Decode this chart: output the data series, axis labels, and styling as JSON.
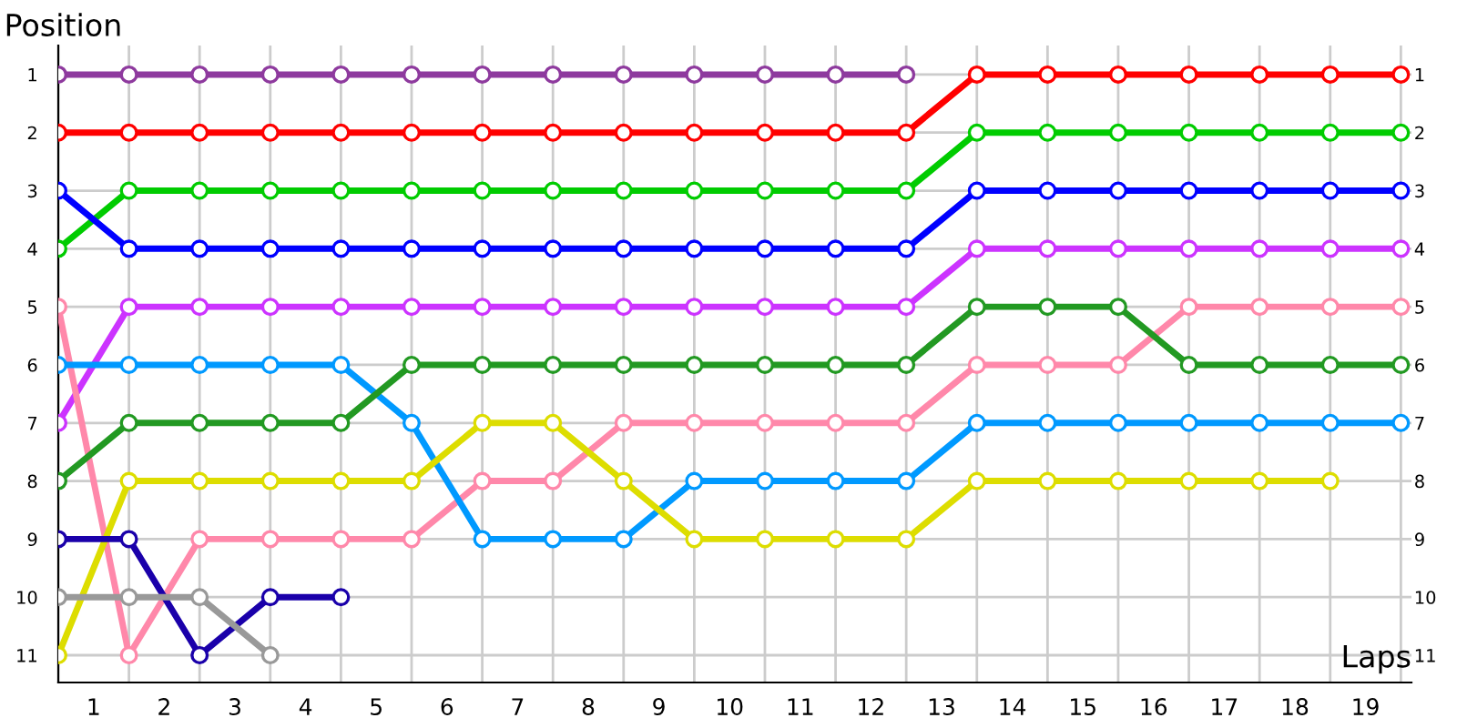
{
  "chart_data": {
    "type": "line",
    "xlabel": "Laps",
    "ylabel": "Position",
    "x": [
      0,
      1,
      2,
      3,
      4,
      5,
      6,
      7,
      8,
      9,
      10,
      11,
      12,
      13,
      14,
      15,
      16,
      17,
      18,
      19
    ],
    "series": [
      {
        "color": "#8e3a9e",
        "values": [
          1,
          1,
          1,
          1,
          1,
          1,
          1,
          1,
          1,
          1,
          1,
          1,
          1,
          null,
          null,
          null,
          null,
          null,
          null,
          null
        ]
      },
      {
        "color": "#ff0000",
        "values": [
          2,
          2,
          2,
          2,
          2,
          2,
          2,
          2,
          2,
          2,
          2,
          2,
          2,
          1,
          1,
          1,
          1,
          1,
          1,
          1
        ]
      },
      {
        "color": "#00cc00",
        "values": [
          4,
          3,
          3,
          3,
          3,
          3,
          3,
          3,
          3,
          3,
          3,
          3,
          3,
          2,
          2,
          2,
          2,
          2,
          2,
          2
        ]
      },
      {
        "color": "#0000ff",
        "values": [
          3,
          4,
          4,
          4,
          4,
          4,
          4,
          4,
          4,
          4,
          4,
          4,
          4,
          3,
          3,
          3,
          3,
          3,
          3,
          3
        ]
      },
      {
        "color": "#cc33ff",
        "values": [
          7,
          5,
          5,
          5,
          5,
          5,
          5,
          5,
          5,
          5,
          5,
          5,
          5,
          4,
          4,
          4,
          4,
          4,
          4,
          4
        ]
      },
      {
        "color": "#ff88aa",
        "values": [
          5,
          11,
          9,
          9,
          9,
          9,
          8,
          8,
          7,
          7,
          7,
          7,
          7,
          6,
          6,
          6,
          5,
          5,
          5,
          5
        ]
      },
      {
        "color": "#0099ff",
        "values": [
          6,
          6,
          6,
          6,
          6,
          7,
          9,
          9,
          9,
          8,
          8,
          8,
          8,
          7,
          7,
          7,
          7,
          7,
          7,
          7
        ]
      },
      {
        "color": "#229922",
        "values": [
          8,
          7,
          7,
          7,
          7,
          6,
          6,
          6,
          6,
          6,
          6,
          6,
          6,
          5,
          5,
          5,
          6,
          6,
          6,
          6
        ]
      },
      {
        "color": "#dddd00",
        "values": [
          11,
          8,
          8,
          8,
          8,
          8,
          7,
          7,
          8,
          9,
          9,
          9,
          9,
          8,
          8,
          8,
          8,
          8,
          8,
          null
        ]
      },
      {
        "color": "#1a00aa",
        "values": [
          9,
          9,
          11,
          10,
          10,
          null,
          null,
          null,
          null,
          null,
          null,
          null,
          null,
          null,
          null,
          null,
          null,
          null,
          null,
          null
        ]
      },
      {
        "color": "#999999",
        "values": [
          10,
          10,
          10,
          11,
          null,
          null,
          null,
          null,
          null,
          null,
          null,
          null,
          null,
          null,
          null,
          null,
          null,
          null,
          null,
          null
        ]
      }
    ],
    "xlim": [
      0,
      19.15
    ],
    "xticks": [
      {
        "value": 0.5,
        "label": "1"
      },
      {
        "value": 1.5,
        "label": "2"
      },
      {
        "value": 2.5,
        "label": "3"
      },
      {
        "value": 3.5,
        "label": "4"
      },
      {
        "value": 4.5,
        "label": "5"
      },
      {
        "value": 5.5,
        "label": "6"
      },
      {
        "value": 6.5,
        "label": "7"
      },
      {
        "value": 7.5,
        "label": "8"
      },
      {
        "value": 8.5,
        "label": "9"
      },
      {
        "value": 9.5,
        "label": "10"
      },
      {
        "value": 10.5,
        "label": "11"
      },
      {
        "value": 11.5,
        "label": "12"
      },
      {
        "value": 12.5,
        "label": "13"
      },
      {
        "value": 13.5,
        "label": "14"
      },
      {
        "value": 14.5,
        "label": "15"
      },
      {
        "value": 15.5,
        "label": "16"
      },
      {
        "value": 16.5,
        "label": "17"
      },
      {
        "value": 17.5,
        "label": "18"
      },
      {
        "value": 18.5,
        "label": "19"
      }
    ],
    "ylim": [
      11.47,
      0.5
    ],
    "yticks": [
      1,
      2,
      3,
      4,
      5,
      6,
      7,
      8,
      9,
      10,
      11
    ],
    "y2lim": [
      11.47,
      0.5
    ],
    "y2ticks": [
      1,
      2,
      3,
      4,
      5,
      6,
      7,
      8,
      9,
      10,
      11
    ],
    "grid": true,
    "marker": "circle",
    "line_style": "solid",
    "legend": false
  }
}
